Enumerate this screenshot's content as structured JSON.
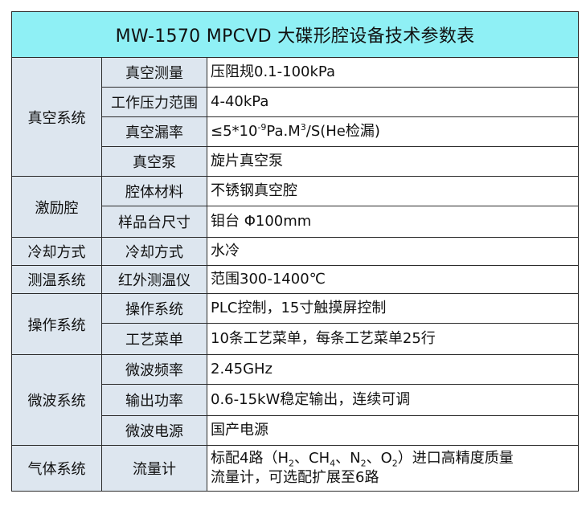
{
  "title": "MW-1570 MPCVD 大碟形腔设备技术参数表",
  "sections": [
    {
      "category": "真空系统",
      "rows": [
        {
          "item": "真空测量",
          "value": "压阻规0.1-100kPa"
        },
        {
          "item": "工作压力范围",
          "value": "4-40kPa"
        },
        {
          "item": "真空漏率",
          "value_prefix": "≤5*10",
          "value_sup1": "-9",
          "value_mid": "Pa.M",
          "value_sup2": "3",
          "value_suffix": "/S(He检漏)"
        },
        {
          "item": "真空泵",
          "value": "旋片真空泵"
        }
      ]
    },
    {
      "category": "激励腔",
      "rows": [
        {
          "item": "腔体材料",
          "value": "不锈钢真空腔"
        },
        {
          "item": "样品台尺寸",
          "value": "钼台 Φ100mm"
        }
      ]
    },
    {
      "category": "冷却方式",
      "rows": [
        {
          "item": "冷却方式",
          "value": "水冷"
        }
      ]
    },
    {
      "category": "测温系统",
      "rows": [
        {
          "item": "红外测温仪",
          "value": "范围300-1400℃"
        }
      ]
    },
    {
      "category": "操作系统",
      "rows": [
        {
          "item": "操作系统",
          "value": "PLC控制，15寸触摸屏控制"
        },
        {
          "item": "工艺菜单",
          "value": "10条工艺菜单，每条工艺菜单25行"
        }
      ]
    },
    {
      "category": "微波系统",
      "rows": [
        {
          "item": "微波频率",
          "value": "2.45GHz"
        },
        {
          "item": "输出功率",
          "value": "0.6-15kW稳定输出，连续可调"
        },
        {
          "item": "微波电源",
          "value": "国产电源"
        }
      ]
    },
    {
      "category": "气体系统",
      "rows": [
        {
          "item": "流量计",
          "gas": {
            "t1": "标配4路（H",
            "s1": "2",
            "t2": "、CH",
            "s2": "4",
            "t3": "、N",
            "s3": "2",
            "t4": "、O",
            "s4": "2",
            "t5": "）进口高精度质量",
            "line2": "流量计，可选配扩展至6路"
          }
        }
      ]
    }
  ],
  "colors": {
    "title_bg": "#8ff0f5",
    "label_bg": "#dde6ef",
    "value_bg": "#ffffff",
    "border": "#2b2b2b"
  }
}
